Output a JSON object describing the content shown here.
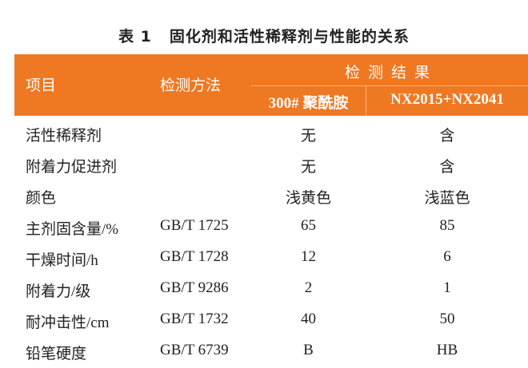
{
  "title": {
    "number": "表 1",
    "text": "固化剂和活性稀释剂与性能的关系"
  },
  "header": {
    "item": "项目",
    "method": "检测方法",
    "results": "检测结果",
    "col1": "300# 聚酰胺",
    "col2": "NX2015+NX2041"
  },
  "colors": {
    "header_bg": "#ef7822"
  },
  "rows": [
    [
      "活性稀释剂",
      "",
      "无",
      "含"
    ],
    [
      "附着力促进剂",
      "",
      "无",
      "含"
    ],
    [
      "颜色",
      "",
      "浅黄色",
      "浅蓝色"
    ],
    [
      "主剂固含量/%",
      "GB/T 1725",
      "65",
      "85"
    ],
    [
      "干燥时间/h",
      "GB/T 1728",
      "12",
      "6"
    ],
    [
      "附着力/级",
      "GB/T 9286",
      "2",
      "1"
    ],
    [
      "耐冲击性/cm",
      "GB/T 1732",
      "40",
      "50"
    ],
    [
      "铅笔硬度",
      "GB/T 6739",
      "B",
      "HB"
    ]
  ]
}
